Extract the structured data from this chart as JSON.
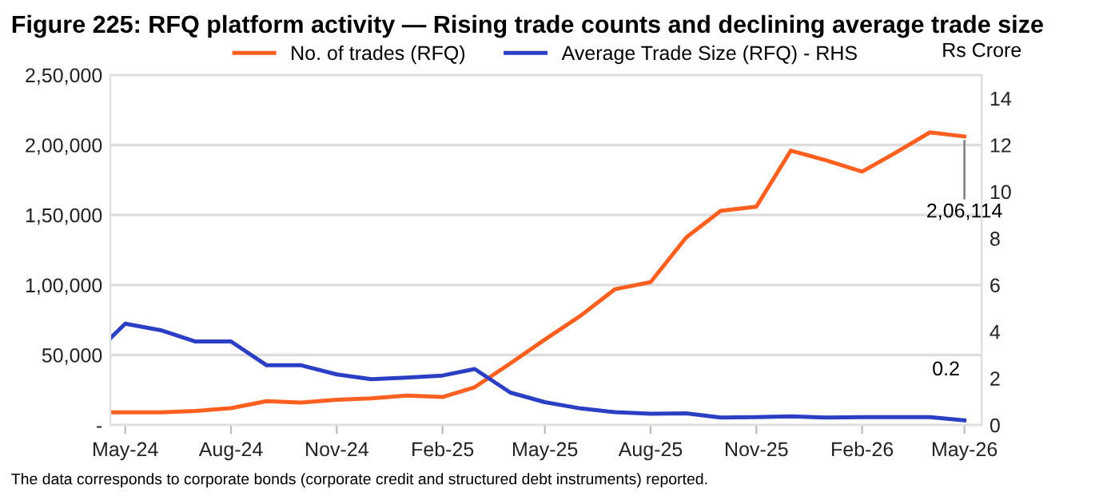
{
  "chart_data": {
    "type": "line",
    "title": "Figure 225: RFQ platform activity — Rising trade counts and declining average trade size",
    "x": [
      "2024-04-18",
      "2024-05",
      "2024-06",
      "2024-07",
      "2024-08",
      "2024-09",
      "2024-10",
      "2024-11",
      "2024-12",
      "2025-01",
      "2025-02",
      "2025-03",
      "2025-04",
      "2025-05",
      "2025-06",
      "2025-07",
      "2025-08",
      "2025-09",
      "2025-10",
      "2025-11",
      "2025-12",
      "2026-01",
      "2026-02",
      "2026-03",
      "2026-04",
      "2026-05"
    ],
    "series": [
      {
        "name": "No. of trades (RFQ)",
        "color": "#ff5f1f",
        "values": [
          9000,
          9000,
          9000,
          10000,
          12000,
          17000,
          16000,
          18000,
          19000,
          21000,
          20000,
          27000,
          44000,
          61000,
          78000,
          97000,
          102000,
          134000,
          153000,
          156000,
          196000,
          189000,
          181000,
          194000,
          209000,
          206114
        ]
      },
      {
        "name": "Average Trade Size (RFQ) - RHS",
        "color": "#2b3fc4",
        "axis": "y2",
        "values": [
          3.72,
          4.34,
          4.06,
          3.58,
          3.58,
          2.56,
          2.56,
          2.17,
          1.96,
          2.03,
          2.12,
          2.4,
          1.39,
          0.98,
          0.71,
          0.55,
          0.48,
          0.5,
          0.32,
          0.34,
          0.37,
          0.32,
          0.34,
          0.34,
          0.34,
          0.2
        ]
      }
    ],
    "xlim": [
      "2024-04-18",
      "2026-05-16"
    ],
    "xticks": [
      {
        "value": "2024-05",
        "label": "May-24"
      },
      {
        "value": "2024-08",
        "label": "Aug-24"
      },
      {
        "value": "2024-11",
        "label": "Nov-24"
      },
      {
        "value": "2025-02",
        "label": "Feb-25"
      },
      {
        "value": "2025-05",
        "label": "May-25"
      },
      {
        "value": "2025-08",
        "label": "Aug-25"
      },
      {
        "value": "2025-11",
        "label": "Nov-25"
      },
      {
        "value": "2026-02",
        "label": "Feb-26"
      },
      {
        "value": "2026-05",
        "label": "May-26"
      }
    ],
    "ylim": [
      0,
      250000
    ],
    "yticks": [
      {
        "value": 0,
        "label": "-"
      },
      {
        "value": 50000,
        "label": "50,000"
      },
      {
        "value": 100000,
        "label": "1,00,000"
      },
      {
        "value": 150000,
        "label": "1,50,000"
      },
      {
        "value": 200000,
        "label": "2,00,000"
      },
      {
        "value": 250000,
        "label": "2,50,000"
      }
    ],
    "y2lim": [
      0,
      15
    ],
    "y2ticks": [
      0,
      2,
      4,
      6,
      8,
      10,
      12,
      14
    ],
    "y2label": "Rs Crore",
    "grid": "y",
    "legend": "top",
    "marker": "none",
    "line_style": "solid",
    "annotations": [
      {
        "text": "2,06,114",
        "x": "2026-05",
        "y": 206114
      },
      "0.2",
      "The data corresponds to corporate bonds (corporate credit and structured debt instruments) reported."
    ]
  }
}
